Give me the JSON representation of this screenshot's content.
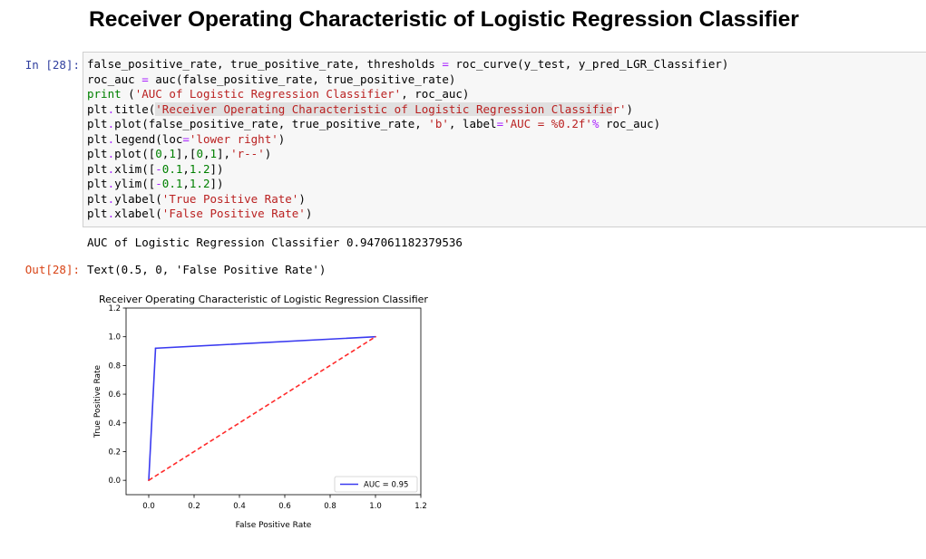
{
  "page_title": "Receiver Operating Characteristic of Logistic Regression Classifier",
  "input_prompt": "In [28]:",
  "output_prompt": "Out[28]:",
  "code_lines": [
    [
      {
        "t": "false_positive_rate, true_positive_rate, thresholds "
      },
      {
        "t": "=",
        "k": "op"
      },
      {
        "t": " roc_curve(y_test, y_pred_LGR_Classifier)"
      }
    ],
    [
      {
        "t": "roc_auc "
      },
      {
        "t": "=",
        "k": "op"
      },
      {
        "t": " auc(false_positive_rate, true_positive_rate)"
      }
    ],
    [
      {
        "t": "print",
        "k": "kw"
      },
      {
        "t": " ("
      },
      {
        "t": "'AUC of Logistic Regression Classifier'",
        "k": "str"
      },
      {
        "t": ", roc_auc)"
      }
    ],
    [
      {
        "t": "plt"
      },
      {
        "t": ".",
        "k": "op"
      },
      {
        "t": "title("
      },
      {
        "t": "'Receiver Operating Characteristic of Logistic Regression Classifie",
        "k": "str-hl"
      },
      {
        "t": "r'",
        "k": "str"
      },
      {
        "t": ")"
      }
    ],
    [
      {
        "t": "plt"
      },
      {
        "t": ".",
        "k": "op"
      },
      {
        "t": "plot(false_positive_rate, true_positive_rate, "
      },
      {
        "t": "'b'",
        "k": "str"
      },
      {
        "t": ", label"
      },
      {
        "t": "=",
        "k": "op"
      },
      {
        "t": "'AUC = %0.2f'",
        "k": "str"
      },
      {
        "t": "%",
        "k": "op"
      },
      {
        "t": " roc_auc)"
      }
    ],
    [
      {
        "t": "plt"
      },
      {
        "t": ".",
        "k": "op"
      },
      {
        "t": "legend(loc"
      },
      {
        "t": "=",
        "k": "op"
      },
      {
        "t": "'lower right'",
        "k": "str"
      },
      {
        "t": ")"
      }
    ],
    [
      {
        "t": "plt"
      },
      {
        "t": ".",
        "k": "op"
      },
      {
        "t": "plot(["
      },
      {
        "t": "0",
        "k": "num"
      },
      {
        "t": ","
      },
      {
        "t": "1",
        "k": "num"
      },
      {
        "t": "],["
      },
      {
        "t": "0",
        "k": "num"
      },
      {
        "t": ","
      },
      {
        "t": "1",
        "k": "num"
      },
      {
        "t": "],"
      },
      {
        "t": "'r--'",
        "k": "str"
      },
      {
        "t": ")"
      }
    ],
    [
      {
        "t": "plt"
      },
      {
        "t": ".",
        "k": "op"
      },
      {
        "t": "xlim(["
      },
      {
        "t": "-",
        "k": "op"
      },
      {
        "t": "0.1",
        "k": "num"
      },
      {
        "t": ","
      },
      {
        "t": "1.2",
        "k": "num"
      },
      {
        "t": "])"
      }
    ],
    [
      {
        "t": "plt"
      },
      {
        "t": ".",
        "k": "op"
      },
      {
        "t": "ylim(["
      },
      {
        "t": "-",
        "k": "op"
      },
      {
        "t": "0.1",
        "k": "num"
      },
      {
        "t": ","
      },
      {
        "t": "1.2",
        "k": "num"
      },
      {
        "t": "])"
      }
    ],
    [
      {
        "t": "plt"
      },
      {
        "t": ".",
        "k": "op"
      },
      {
        "t": "ylabel("
      },
      {
        "t": "'True Positive Rate'",
        "k": "str"
      },
      {
        "t": ")"
      }
    ],
    [
      {
        "t": "plt"
      },
      {
        "t": ".",
        "k": "op"
      },
      {
        "t": "xlabel("
      },
      {
        "t": "'False Positive Rate'",
        "k": "str"
      },
      {
        "t": ")"
      }
    ]
  ],
  "stdout_text": "AUC of Logistic Regression Classifier 0.947061182379536",
  "output_text": "Text(0.5, 0, 'False Positive Rate')",
  "chart_data": {
    "type": "line",
    "title": "Receiver Operating Characteristic of Logistic Regression Classifier",
    "xlabel": "False Positive Rate",
    "ylabel": "True Positive Rate",
    "xlim": [
      -0.1,
      1.2
    ],
    "ylim": [
      -0.1,
      1.2
    ],
    "xticks": [
      0.0,
      0.2,
      0.4,
      0.6,
      0.8,
      1.0,
      1.2
    ],
    "xtick_labels": [
      "0.0",
      "0.2",
      "0.4",
      "0.6",
      "0.8",
      "1.0",
      "1.2"
    ],
    "yticks": [
      0.0,
      0.2,
      0.4,
      0.6,
      0.8,
      1.0,
      1.2
    ],
    "ytick_labels": [
      "0.0",
      "0.2",
      "0.4",
      "0.6",
      "0.8",
      "1.0",
      "1.2"
    ],
    "grid": false,
    "legend_position": "lower right",
    "series": [
      {
        "name": "AUC = 0.95",
        "color": "#3a3af0",
        "style": "solid",
        "x": [
          0.0,
          0.03,
          1.0
        ],
        "y": [
          0.0,
          0.92,
          1.0
        ]
      },
      {
        "color": "#ff2a2a",
        "style": "dashed",
        "x": [
          0.0,
          1.0
        ],
        "y": [
          0.0,
          1.0
        ]
      }
    ]
  }
}
